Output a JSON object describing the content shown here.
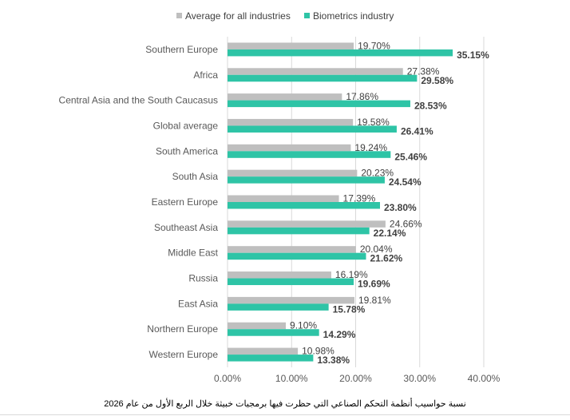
{
  "colors": {
    "average": "#bfbfbf",
    "biometrics": "#2ec4a6",
    "axis_text": "#595959",
    "grid": "#d9d9d9",
    "value_text": "#404040"
  },
  "legend": {
    "average_label": "Average for all industries",
    "biometrics_label": "Biometrics industry"
  },
  "caption": "نسبة حواسيب أنظمة التحكم الصناعي التي حظرت فيها برمجيات خبيثة خلال الربع الأول من عام 2026",
  "chart_data": {
    "type": "bar",
    "orientation": "horizontal",
    "categories": [
      "Southern Europe",
      "Africa",
      "Central Asia and the South Caucasus",
      "Global average",
      "South America",
      "South Asia",
      "Eastern Europe",
      "Southeast Asia",
      "Middle East",
      "Russia",
      "East Asia",
      "Northern Europe",
      "Western Europe"
    ],
    "series": [
      {
        "name": "Average for all industries",
        "values": [
          19.7,
          27.38,
          17.86,
          19.58,
          19.24,
          20.23,
          17.39,
          24.66,
          20.04,
          16.19,
          19.81,
          9.1,
          10.98
        ],
        "labels": [
          "19.70%",
          "27.38%",
          "17.86%",
          "19.58%",
          "19.24%",
          "20.23%",
          "17.39%",
          "24.66%",
          "20.04%",
          "16.19%",
          "19.81%",
          "9.10%",
          "10.98%"
        ]
      },
      {
        "name": "Biometrics industry",
        "values": [
          35.15,
          29.58,
          28.53,
          26.41,
          25.46,
          24.54,
          23.8,
          22.14,
          21.62,
          19.69,
          15.78,
          14.29,
          13.38
        ],
        "labels": [
          "35.15%",
          "29.58%",
          "28.53%",
          "26.41%",
          "25.46%",
          "24.54%",
          "23.80%",
          "22.14%",
          "21.62%",
          "19.69%",
          "15.78%",
          "14.29%",
          "13.38%"
        ]
      }
    ],
    "xlim": [
      0,
      40
    ],
    "xticks": [
      "0.00%",
      "10.00%",
      "20.00%",
      "30.00%",
      "40.00%"
    ],
    "grid": true,
    "legend_position": "top"
  }
}
